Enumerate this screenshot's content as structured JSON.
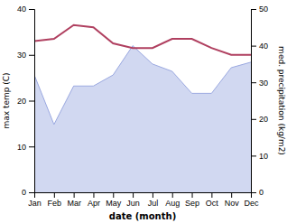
{
  "chart_data": {
    "type": "line",
    "categories": [
      "Jan",
      "Feb",
      "Mar",
      "Apr",
      "May",
      "Jun",
      "Jul",
      "Aug",
      "Sep",
      "Oct",
      "Nov",
      "Dec"
    ],
    "xlabel": "date (month)",
    "ylabel": "max temp (C)",
    "y2label": "med. precipitation (kg/m2)",
    "series": [
      {
        "type": "line",
        "color": "#b04060",
        "values": [
          33.0,
          33.5,
          36.5,
          36.0,
          32.5,
          31.5,
          31.5,
          33.5,
          33.5,
          31.5,
          30.0,
          30.0
        ]
      },
      {
        "type": "area",
        "axis": "y2",
        "color": "#9aa8e0",
        "values": [
          32.0,
          18.5,
          29.0,
          29.0,
          32.0,
          40.0,
          35.0,
          33.0,
          27.0,
          27.0,
          34.0,
          35.5
        ]
      }
    ],
    "ylim": [
      0,
      40
    ],
    "yticks": [
      0,
      10,
      20,
      30,
      40
    ],
    "y2lim": [
      0,
      50
    ],
    "y2ticks": [
      0,
      10,
      20,
      30,
      40,
      50
    ],
    "grid": false
  }
}
